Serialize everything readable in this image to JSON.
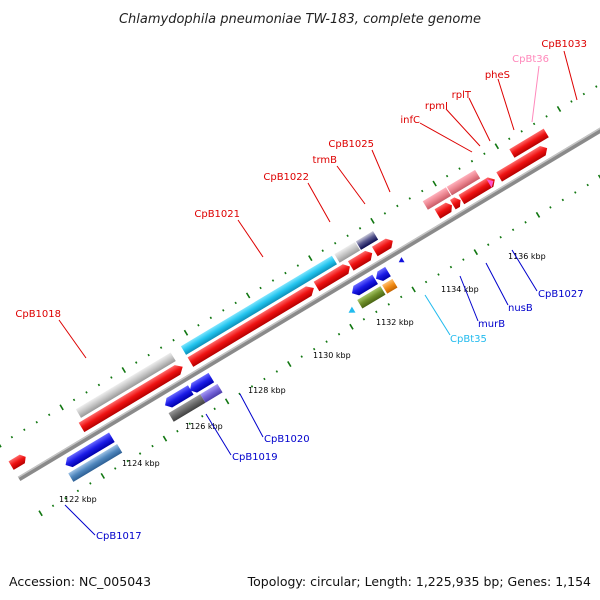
{
  "title": "Chlamydophila pneumoniae TW-183, complete genome",
  "accession": "Accession: NC_005043",
  "summary": "Topology: circular; Length: 1,225,935 bp; Genes: 1,154",
  "colors": {
    "forward_gene": "#ee1111",
    "reverse_gene": "#1111dd",
    "trna_forward": "#ee7799",
    "trna_reverse": "#22bbee",
    "backbone": "#888888",
    "tick": "#117711"
  },
  "scale_labels": [
    "1122 kbp",
    "1124 kbp",
    "1126 kbp",
    "1128 kbp",
    "1130 kbp",
    "1132 kbp",
    "1134 kbp",
    "1136 kbp"
  ],
  "forward_labels": [
    "CpB1018",
    "CpB1021",
    "CpB1022",
    "trmB",
    "CpB1025",
    "infC",
    "rpmI",
    "rplT",
    "pheS",
    "CpBt36",
    "CpB1033"
  ],
  "reverse_labels": [
    "CpB1017",
    "CpB1019",
    "CpB1020",
    "CpBt35",
    "murB",
    "nusB",
    "CpB1027"
  ]
}
